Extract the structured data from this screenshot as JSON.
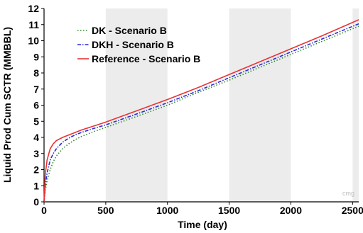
{
  "chart_data": {
    "type": "line",
    "title": "",
    "xlabel": "Time (day)",
    "ylabel": "Liquid Prod Cum SCTR (MMBBL)",
    "xlim": [
      0,
      2550
    ],
    "ylim": [
      0,
      12
    ],
    "xticks": [
      "0",
      "500",
      "1000",
      "1500",
      "2000",
      "2500"
    ],
    "yticks": [
      "0",
      "1",
      "2",
      "3",
      "4",
      "5",
      "6",
      "7",
      "8",
      "9",
      "10",
      "11",
      "12"
    ],
    "grid": false,
    "shaded_bands": [
      [
        500,
        1000
      ],
      [
        1500,
        2000
      ],
      [
        2500,
        2550
      ]
    ],
    "legend_position": "upper-left",
    "watermark": "cmg",
    "series": [
      {
        "name": "DK - Scenario B",
        "color": "#2e8b2e",
        "style": "dotted",
        "x": [
          0,
          10,
          25,
          50,
          75,
          100,
          150,
          200,
          250,
          300,
          400,
          500,
          750,
          1000,
          1250,
          1500,
          1750,
          2000,
          2250,
          2550
        ],
        "y": [
          0,
          0.7,
          1.3,
          2.0,
          2.5,
          2.85,
          3.3,
          3.6,
          3.85,
          4.05,
          4.35,
          4.62,
          5.3,
          6.0,
          6.8,
          7.55,
          8.35,
          9.15,
          9.95,
          10.9
        ]
      },
      {
        "name": "DKH - Scenario B",
        "color": "#2a2ad9",
        "style": "dashdot",
        "x": [
          0,
          10,
          25,
          50,
          75,
          100,
          150,
          200,
          250,
          300,
          400,
          500,
          750,
          1000,
          1250,
          1500,
          1750,
          2000,
          2250,
          2550
        ],
        "y": [
          0,
          1.0,
          1.8,
          2.6,
          3.0,
          3.3,
          3.7,
          3.95,
          4.15,
          4.3,
          4.55,
          4.78,
          5.45,
          6.15,
          6.9,
          7.7,
          8.5,
          9.3,
          10.1,
          11.05
        ]
      },
      {
        "name": "Reference - Scenario B",
        "color": "#e83333",
        "style": "solid",
        "x": [
          0,
          10,
          25,
          50,
          75,
          100,
          150,
          200,
          250,
          300,
          400,
          500,
          750,
          1000,
          1250,
          1500,
          1750,
          2000,
          2250,
          2550
        ],
        "y": [
          0,
          1.7,
          2.6,
          3.3,
          3.6,
          3.8,
          4.0,
          4.15,
          4.3,
          4.45,
          4.7,
          4.95,
          5.65,
          6.35,
          7.1,
          7.9,
          8.7,
          9.5,
          10.3,
          11.3
        ]
      }
    ]
  }
}
